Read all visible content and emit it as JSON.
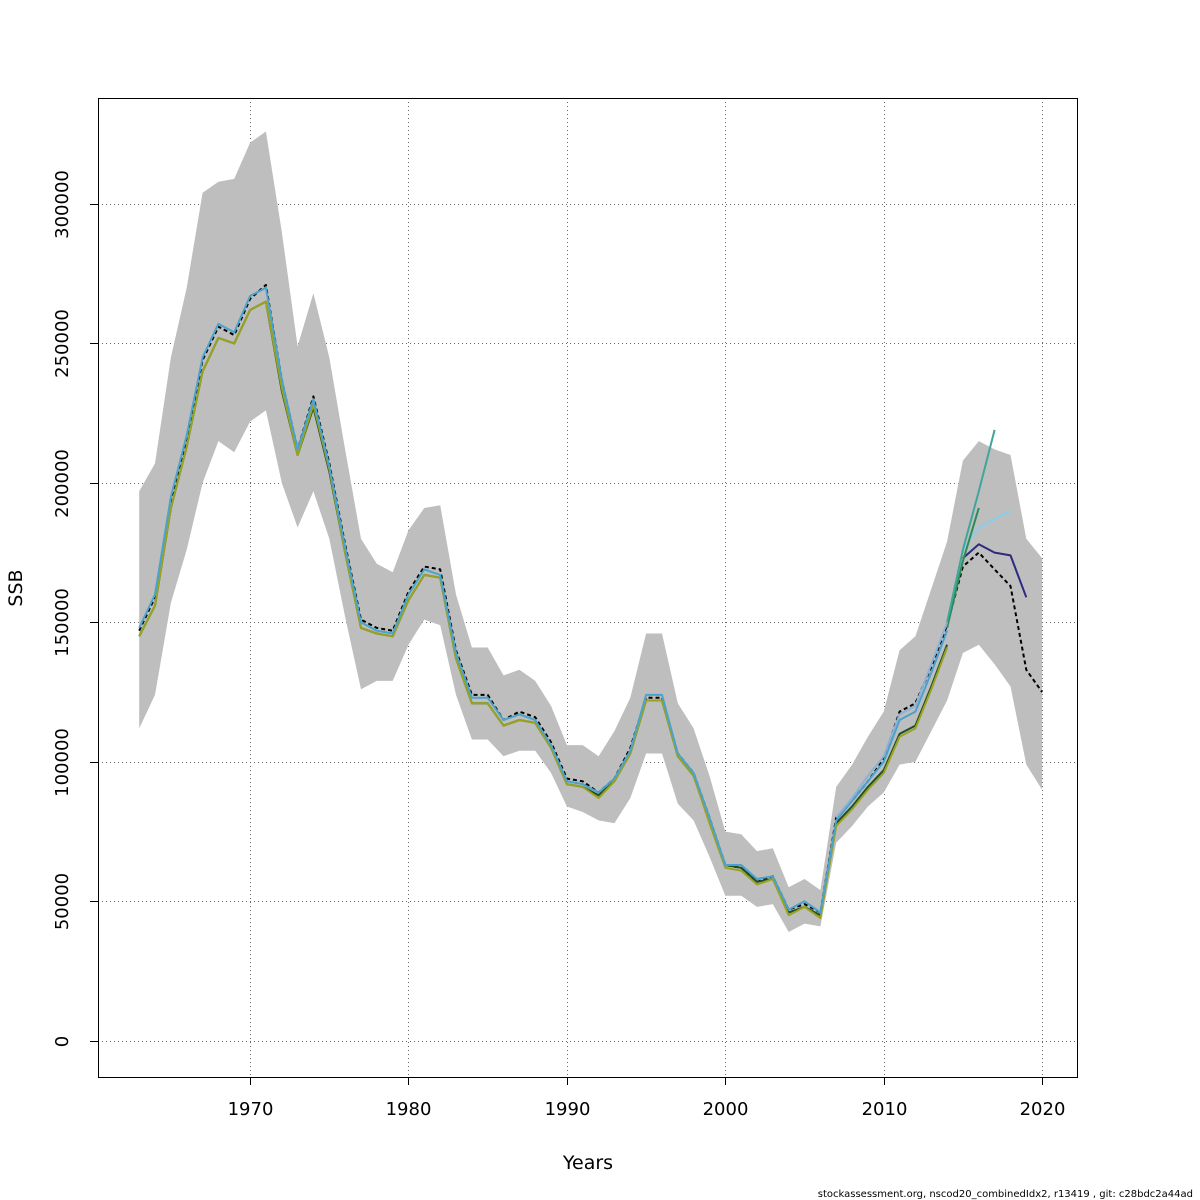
{
  "chart_data": {
    "type": "line",
    "xlabel": "Years",
    "ylabel": "SSB",
    "xlim": [
      1960.4,
      2022.2
    ],
    "ylim": [
      -13000,
      338000
    ],
    "xticks": [
      1970,
      1980,
      1990,
      2000,
      2010,
      2020
    ],
    "yticks": [
      0,
      50000,
      100000,
      150000,
      200000,
      250000,
      300000
    ],
    "ytick_labels": [
      "0",
      "50000",
      "100000",
      "150000",
      "200000",
      "250000",
      "300000"
    ],
    "grid": true,
    "footer": "stockassessment.org, nscod20_combinedIdx2, r13419 , git: c28bdc2a44ad",
    "band": {
      "color": "#bebebe",
      "x": [
        1963,
        1964,
        1965,
        1966,
        1967,
        1968,
        1969,
        1970,
        1971,
        1972,
        1973,
        1974,
        1975,
        1976,
        1977,
        1978,
        1979,
        1980,
        1981,
        1982,
        1983,
        1984,
        1985,
        1986,
        1987,
        1988,
        1989,
        1990,
        1991,
        1992,
        1993,
        1994,
        1995,
        1996,
        1997,
        1998,
        1999,
        2000,
        2001,
        2002,
        2003,
        2004,
        2005,
        2006,
        2007,
        2008,
        2009,
        2010,
        2011,
        2012,
        2013,
        2014,
        2015,
        2016,
        2017,
        2018,
        2019,
        2020
      ],
      "upper": [
        197000,
        207000,
        245000,
        270000,
        304000,
        308000,
        309000,
        322000,
        326000,
        290000,
        249000,
        268000,
        245000,
        212000,
        180000,
        171000,
        168000,
        183000,
        191000,
        192000,
        160000,
        141000,
        141000,
        131000,
        133000,
        129000,
        120000,
        106000,
        106000,
        102000,
        111000,
        123000,
        146000,
        146000,
        121000,
        112000,
        95000,
        75000,
        74000,
        68000,
        69000,
        55000,
        58000,
        54000,
        91000,
        99000,
        109000,
        118000,
        140000,
        145000,
        162000,
        179000,
        208000,
        215000,
        212000,
        210000,
        180000,
        173000
      ],
      "lower": [
        112000,
        124000,
        157000,
        176000,
        200000,
        215000,
        211000,
        222000,
        226000,
        200000,
        184000,
        197000,
        180000,
        152000,
        126000,
        129000,
        129000,
        142000,
        151000,
        149000,
        124000,
        108000,
        108000,
        102000,
        104000,
        104000,
        96000,
        84000,
        82000,
        79000,
        78000,
        87000,
        103000,
        103000,
        85000,
        79000,
        66000,
        52000,
        52000,
        48000,
        49000,
        39000,
        42000,
        41000,
        71000,
        77000,
        84000,
        89000,
        99000,
        100000,
        111000,
        122000,
        139000,
        142000,
        135000,
        127000,
        99000,
        90000
      ]
    },
    "series": [
      {
        "color": "#000000",
        "dashed": true,
        "width": 2,
        "x": [
          1963,
          1964,
          1965,
          1966,
          1967,
          1968,
          1969,
          1970,
          1971,
          1972,
          1973,
          1974,
          1975,
          1976,
          1977,
          1978,
          1979,
          1980,
          1981,
          1982,
          1983,
          1984,
          1985,
          1986,
          1987,
          1988,
          1989,
          1990,
          1991,
          1992,
          1993,
          1994,
          1995,
          1996,
          1997,
          1998,
          1999,
          2000,
          2001,
          2002,
          2003,
          2004,
          2005,
          2006,
          2007,
          2008,
          2009,
          2010,
          2011,
          2012,
          2013,
          2014,
          2015,
          2016,
          2017,
          2018,
          2019,
          2020
        ],
        "y": [
          147000,
          159000,
          194000,
          216000,
          244000,
          256000,
          253000,
          266000,
          271000,
          237000,
          212000,
          231000,
          207000,
          178000,
          151000,
          148000,
          147000,
          161000,
          170000,
          169000,
          140000,
          124000,
          124000,
          115000,
          118000,
          116000,
          107000,
          94000,
          93000,
          89000,
          94000,
          105000,
          123000,
          123000,
          103000,
          96000,
          80000,
          63000,
          62000,
          57000,
          59000,
          47000,
          49000,
          46000,
          80000,
          86000,
          93000,
          101000,
          118000,
          121000,
          134000,
          149000,
          170000,
          175000,
          169000,
          163000,
          133000,
          125000
        ]
      },
      {
        "color": "#2e2a7e",
        "dashed": false,
        "width": 2,
        "x": [
          2015,
          2016,
          2017,
          2018,
          2019
        ],
        "y": [
          173000,
          178000,
          175000,
          174000,
          159000
        ]
      },
      {
        "color": "#87ceeb",
        "dashed": false,
        "width": 2,
        "x": [
          2015,
          2016,
          2017,
          2018
        ],
        "y": [
          176000,
          184000,
          187000,
          190000
        ]
      },
      {
        "color": "#2e8b57",
        "dashed": false,
        "width": 2,
        "x": [
          2014,
          2015,
          2016
        ],
        "y": [
          148000,
          172000,
          191000
        ]
      },
      {
        "color": "#3fa69a",
        "dashed": false,
        "width": 2,
        "x": [
          2014,
          2015,
          2016,
          2017
        ],
        "y": [
          150000,
          176000,
          197000,
          219000
        ]
      },
      {
        "color": "#1e4d2b",
        "dashed": false,
        "width": 2,
        "x": [
          1963,
          1964,
          1965,
          1966,
          1967,
          1968,
          1969,
          1970,
          1971,
          1972,
          1973,
          1974,
          1975,
          1976,
          1977,
          1978,
          1979,
          1980,
          1981,
          1982,
          1983,
          1984,
          1985,
          1986,
          1987,
          1988,
          1989,
          1990,
          1991,
          1992,
          1993,
          1994,
          1995,
          1996,
          1997,
          1998,
          1999,
          2000,
          2001,
          2002,
          2003,
          2004,
          2005,
          2006,
          2007,
          2008,
          2009,
          2010,
          2011,
          2012,
          2013,
          2014
        ],
        "y": [
          145000,
          156000,
          191000,
          213000,
          240000,
          252000,
          250000,
          262000,
          265000,
          233000,
          210000,
          227000,
          204000,
          175000,
          148000,
          146000,
          145000,
          158000,
          167000,
          166000,
          137000,
          121000,
          121000,
          113000,
          115000,
          114000,
          105000,
          92000,
          91000,
          88000,
          93000,
          103000,
          122000,
          122000,
          102000,
          95000,
          79000,
          63000,
          62000,
          57000,
          58000,
          46000,
          48000,
          45000,
          78000,
          84000,
          91000,
          97000,
          110000,
          113000,
          127000,
          142000
        ]
      },
      {
        "color": "#9aa31e",
        "dashed": false,
        "width": 2,
        "x": [
          1963,
          1964,
          1965,
          1966,
          1967,
          1968,
          1969,
          1970,
          1971,
          1972,
          1973,
          1974,
          1975,
          1976,
          1977,
          1978,
          1979,
          1980,
          1981,
          1982,
          1983,
          1984,
          1985,
          1986,
          1987,
          1988,
          1989,
          1990,
          1991,
          1992,
          1993,
          1994,
          1995,
          1996,
          1997,
          1998,
          1999,
          2000,
          2001,
          2002,
          2003,
          2004,
          2005,
          2006,
          2007,
          2008,
          2009,
          2010,
          2011,
          2012,
          2013,
          2014
        ],
        "y": [
          145000,
          156000,
          191000,
          213000,
          240000,
          252000,
          250000,
          262000,
          265000,
          234000,
          210000,
          228000,
          205000,
          175000,
          148000,
          146000,
          145000,
          158000,
          167000,
          166000,
          137000,
          121000,
          121000,
          113000,
          115000,
          114000,
          105000,
          92000,
          91000,
          87000,
          93000,
          103000,
          122000,
          122000,
          102000,
          95000,
          78000,
          62000,
          61000,
          56000,
          58000,
          45000,
          48000,
          44000,
          77000,
          83000,
          90000,
          96000,
          109000,
          112000,
          126000,
          141000
        ]
      },
      {
        "color": "#4aa3cc",
        "dashed": false,
        "width": 2,
        "x": [
          1963,
          1964,
          1965,
          1966,
          1967,
          1968,
          1969,
          1970,
          1971,
          1972,
          1973,
          1974,
          1975,
          1976,
          1977,
          1978,
          1979,
          1980,
          1981,
          1982,
          1983,
          1984,
          1985,
          1986,
          1987,
          1988,
          1989,
          1990,
          1991,
          1992,
          1993,
          1994,
          1995,
          1996,
          1997,
          1998,
          1999,
          2000,
          2001,
          2002,
          2003,
          2004,
          2005,
          2006,
          2007,
          2008,
          2009,
          2010,
          2011,
          2012,
          2013,
          2014
        ],
        "y": [
          148000,
          160000,
          195000,
          217000,
          245000,
          257000,
          254000,
          267000,
          270000,
          237000,
          212000,
          230000,
          206000,
          177000,
          150000,
          147000,
          146000,
          160000,
          169000,
          167000,
          139000,
          123000,
          123000,
          115000,
          117000,
          115000,
          106000,
          93000,
          92000,
          89000,
          94000,
          104000,
          124000,
          124000,
          103000,
          96000,
          80000,
          63000,
          63000,
          58000,
          59000,
          47000,
          50000,
          46000,
          79000,
          86000,
          93000,
          100000,
          115000,
          118000,
          132000,
          147000
        ]
      },
      {
        "color": "#8fb0d6",
        "dashed": false,
        "width": 2,
        "x": [
          2007,
          2008,
          2009,
          2010,
          2011,
          2012,
          2013,
          2014
        ],
        "y": [
          80000,
          87000,
          95000,
          102000,
          117000,
          120000,
          135000,
          150000
        ]
      }
    ]
  }
}
